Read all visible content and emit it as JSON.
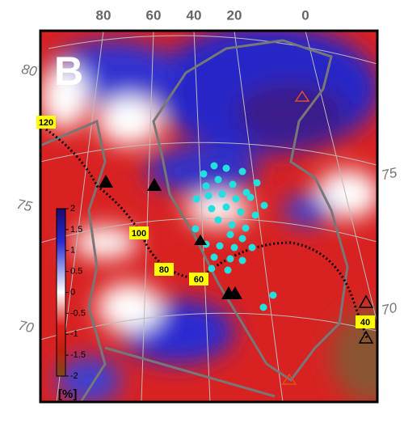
{
  "panel_label": "B",
  "longitude_labels": [
    80,
    60,
    40,
    20,
    0
  ],
  "latitude_labels_left": [
    80,
    75,
    70
  ],
  "latitude_labels_right": [
    75,
    70
  ],
  "profile_labels": [
    120,
    100,
    80,
    60,
    40
  ],
  "colorbar": {
    "label": "[%]",
    "lim": [
      -2,
      2
    ],
    "ticks": [
      2,
      1.5,
      1,
      0.5,
      0,
      -0.5,
      -1,
      -1.5,
      -2
    ]
  }
}
